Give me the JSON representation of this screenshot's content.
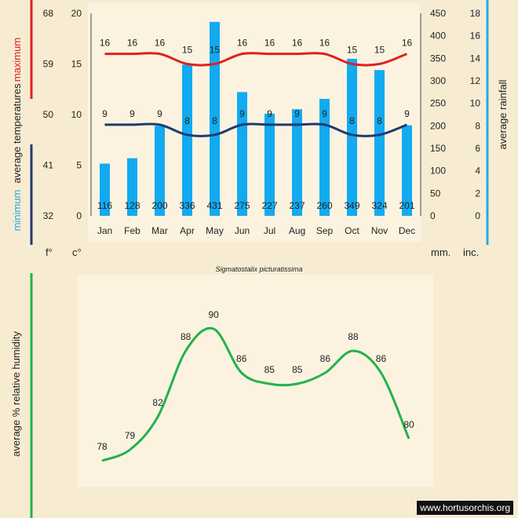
{
  "colors": {
    "max_line": "#e02020",
    "min_line": "#1f3a6e",
    "rain_bar": "#12aaf0",
    "humidity_line": "#21b24b",
    "axis_text": "#222222",
    "rain_axis_bar": "#29a7e3",
    "background": "#f7ecd2",
    "panel": "#fbf3e0"
  },
  "temperature_chart": {
    "title_max": "maximum",
    "title_mid": "average  temperatures",
    "title_min": "minimum",
    "rain_title": "average rainfall",
    "unit_f": "f°",
    "unit_c": "c°",
    "unit_mm": "mm.",
    "unit_inc": "inc.",
    "f_ticks": [
      "68",
      "59",
      "50",
      "41",
      "32"
    ],
    "c_ticks": [
      "20",
      "15",
      "10",
      "5",
      "0"
    ],
    "mm_ticks": [
      "450",
      "400",
      "350",
      "300",
      "250",
      "200",
      "150",
      "100",
      "50",
      "0"
    ],
    "inch_ticks": [
      "18",
      "16",
      "14",
      "12",
      "10",
      "8",
      "6",
      "4",
      "2",
      "0"
    ]
  },
  "species": "Sigmatostalix picturatissima",
  "humidity_chart": {
    "axis_label": "average %  relative humidity"
  },
  "watermark": "www.hortusorchis.org",
  "chart_data": [
    {
      "type": "bar",
      "title": "average rainfall",
      "categories": [
        "Jan",
        "Feb",
        "Mar",
        "Apr",
        "May",
        "Jun",
        "Jul",
        "Aug",
        "Sep",
        "Oct",
        "Nov",
        "Dec"
      ],
      "values": [
        116,
        128,
        200,
        336,
        431,
        275,
        227,
        237,
        260,
        349,
        324,
        201
      ],
      "ylabel": "mm.",
      "ylim": [
        0,
        450
      ]
    },
    {
      "type": "line",
      "title": "average temperatures",
      "categories": [
        "Jan",
        "Feb",
        "Mar",
        "Apr",
        "May",
        "Jun",
        "Jul",
        "Aug",
        "Sep",
        "Oct",
        "Nov",
        "Dec"
      ],
      "series": [
        {
          "name": "maximum",
          "values": [
            16,
            16,
            16,
            15,
            15,
            16,
            16,
            16,
            16,
            15,
            15,
            16
          ]
        },
        {
          "name": "minimum",
          "values": [
            9,
            9,
            9,
            8,
            8,
            9,
            9,
            9,
            9,
            8,
            8,
            9
          ]
        }
      ],
      "ylabel": "c°",
      "ylim": [
        0,
        20
      ]
    },
    {
      "type": "line",
      "title": "average % relative humidity",
      "categories": [
        "Jan",
        "Feb",
        "Mar",
        "Apr",
        "May",
        "Jun",
        "Jul",
        "Aug",
        "Sep",
        "Oct",
        "Nov",
        "Dec"
      ],
      "values": [
        78,
        79,
        82,
        88,
        90,
        86,
        85,
        85,
        86,
        88,
        86,
        80
      ],
      "ylim": [
        70,
        95
      ]
    }
  ]
}
